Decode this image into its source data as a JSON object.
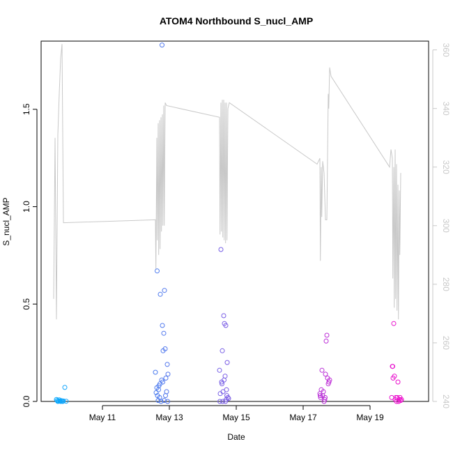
{
  "chart_data": {
    "type": "scatter",
    "title": "ATOM4 Northbound S_nucl_AMP",
    "xlabel": "Date",
    "ylabel": "S_nucl_AMP",
    "grid": false,
    "xlim": [
      "2016-05-09 04:00",
      "2016-05-20 18:00"
    ],
    "ylim": [
      0,
      1.85
    ],
    "y2lim": [
      240,
      363
    ],
    "x_ticks": [
      {
        "label": "May 11",
        "x": "2016-05-11 00:00"
      },
      {
        "label": "May 13",
        "x": "2016-05-13 00:00"
      },
      {
        "label": "May 15",
        "x": "2016-05-15 00:00"
      },
      {
        "label": "May 17",
        "x": "2016-05-17 00:00"
      },
      {
        "label": "May 19",
        "x": "2016-05-19 00:00"
      }
    ],
    "y_ticks": [
      "0.0",
      "0.5",
      "1.0",
      "1.5"
    ],
    "y2_ticks": [
      "240",
      "260",
      "280",
      "300",
      "320",
      "340",
      "360"
    ],
    "colors": {
      "axis": "#000000",
      "secondary": "#c8c8c8",
      "line": "#c8c8c8",
      "gradient_start": "#00b0ff",
      "gradient_end": "#ff00c8"
    },
    "series": [
      {
        "role": "points",
        "axis": "left",
        "marker": "open-circle",
        "points": [
          [
            "2016-05-09 15:00",
            0.01
          ],
          [
            "2016-05-09 15:30",
            0.005
          ],
          [
            "2016-05-09 16:00",
            0.0
          ],
          [
            "2016-05-09 16:30",
            0.003
          ],
          [
            "2016-05-09 17:00",
            0.008
          ],
          [
            "2016-05-09 17:30",
            0.002
          ],
          [
            "2016-05-09 18:00",
            0.0
          ],
          [
            "2016-05-09 18:30",
            0.004
          ],
          [
            "2016-05-09 19:00",
            0.001
          ],
          [
            "2016-05-09 19:30",
            0.0
          ],
          [
            "2016-05-09 20:00",
            0.002
          ],
          [
            "2016-05-09 21:00",
            0.072
          ],
          [
            "2016-05-09 22:00",
            0.001
          ],
          [
            "2016-05-12 14:00",
            0.15
          ],
          [
            "2016-05-12 14:30",
            0.045
          ],
          [
            "2016-05-12 15:00",
            0.07
          ],
          [
            "2016-05-12 15:30",
            0.03
          ],
          [
            "2016-05-12 16:00",
            0.005
          ],
          [
            "2016-05-12 16:30",
            0.08
          ],
          [
            "2016-05-12 17:00",
            0.02
          ],
          [
            "2016-05-12 17:30",
            0.55
          ],
          [
            "2016-05-12 18:00",
            0.0
          ],
          [
            "2016-05-12 18:30",
            0.11
          ],
          [
            "2016-05-12 19:00",
            0.39
          ],
          [
            "2016-05-12 19:30",
            0.26
          ],
          [
            "2016-05-12 20:00",
            0.35
          ],
          [
            "2016-05-12 20:30",
            0.57
          ],
          [
            "2016-05-12 21:00",
            0.27
          ],
          [
            "2016-05-12 21:30",
            0.12
          ],
          [
            "2016-05-12 22:00",
            0.05
          ],
          [
            "2016-05-12 22:30",
            0.19
          ],
          [
            "2016-05-12 23:00",
            0.14
          ],
          [
            "2016-05-12 15:15",
            0.67
          ],
          [
            "2016-05-12 18:45",
            1.83
          ],
          [
            "2016-05-12 20:15",
            0.005
          ],
          [
            "2016-05-12 21:15",
            0.03
          ],
          [
            "2016-05-12 17:15",
            0.09
          ],
          [
            "2016-05-12 19:15",
            0.1
          ],
          [
            "2016-05-12 22:45",
            0.0
          ],
          [
            "2016-05-12 16:15",
            0.06
          ],
          [
            "2016-05-14 12:00",
            0.16
          ],
          [
            "2016-05-14 12:30",
            0.04
          ],
          [
            "2016-05-14 13:00",
            0.78
          ],
          [
            "2016-05-14 13:30",
            0.1
          ],
          [
            "2016-05-14 14:00",
            0.26
          ],
          [
            "2016-05-14 14:30",
            0.05
          ],
          [
            "2016-05-14 15:00",
            0.44
          ],
          [
            "2016-05-14 15:30",
            0.4
          ],
          [
            "2016-05-14 16:00",
            0.13
          ],
          [
            "2016-05-14 16:30",
            0.39
          ],
          [
            "2016-05-14 17:00",
            0.06
          ],
          [
            "2016-05-14 17:30",
            0.2
          ],
          [
            "2016-05-14 18:00",
            0.02
          ],
          [
            "2016-05-14 18:30",
            0.015
          ],
          [
            "2016-05-14 14:15",
            0.0
          ],
          [
            "2016-05-14 15:15",
            0.11
          ],
          [
            "2016-05-14 16:15",
            0.0
          ],
          [
            "2016-05-14 17:15",
            0.03
          ],
          [
            "2016-05-14 13:45",
            0.09
          ],
          [
            "2016-05-14 16:45",
            0.01
          ],
          [
            "2016-05-14 12:15",
            0.0
          ],
          [
            "2016-05-17 12:00",
            0.04
          ],
          [
            "2016-05-17 12:30",
            0.02
          ],
          [
            "2016-05-17 13:00",
            0.06
          ],
          [
            "2016-05-17 13:30",
            0.16
          ],
          [
            "2016-05-17 14:00",
            0.03
          ],
          [
            "2016-05-17 14:30",
            0.05
          ],
          [
            "2016-05-17 15:00",
            0.0
          ],
          [
            "2016-05-17 15:30",
            0.01
          ],
          [
            "2016-05-17 16:00",
            0.14
          ],
          [
            "2016-05-17 16:30",
            0.31
          ],
          [
            "2016-05-17 17:00",
            0.34
          ],
          [
            "2016-05-17 17:30",
            0.12
          ],
          [
            "2016-05-17 18:00",
            0.09
          ],
          [
            "2016-05-17 18:30",
            0.1
          ],
          [
            "2016-05-17 19:00",
            0.11
          ],
          [
            "2016-05-17 12:15",
            0.03
          ],
          [
            "2016-05-17 15:45",
            0.02
          ],
          [
            "2016-05-19 16:00",
            0.18
          ],
          [
            "2016-05-19 16:30",
            0.12
          ],
          [
            "2016-05-19 17:00",
            0.4
          ],
          [
            "2016-05-19 17:30",
            0.13
          ],
          [
            "2016-05-19 18:00",
            0.01
          ],
          [
            "2016-05-19 18:30",
            0.02
          ],
          [
            "2016-05-19 19:00",
            0.0
          ],
          [
            "2016-05-19 19:30",
            0.02
          ],
          [
            "2016-05-19 20:00",
            0.1
          ],
          [
            "2016-05-19 20:30",
            0.0
          ],
          [
            "2016-05-19 21:00",
            0.01
          ],
          [
            "2016-05-19 21:30",
            0.02
          ],
          [
            "2016-05-19 22:00",
            0.005
          ],
          [
            "2016-05-19 15:30",
            0.02
          ],
          [
            "2016-05-19 16:15",
            0.18
          ],
          [
            "2016-05-19 22:30",
            0.01
          ]
        ]
      },
      {
        "role": "line",
        "axis": "right",
        "points": [
          [
            "2016-05-09 13:00",
            275
          ],
          [
            "2016-05-09 14:00",
            330
          ],
          [
            "2016-05-09 15:00",
            268
          ],
          [
            "2016-05-09 16:00",
            331
          ],
          [
            "2016-05-09 17:00",
            345
          ],
          [
            "2016-05-09 18:00",
            357
          ],
          [
            "2016-05-09 19:00",
            362
          ],
          [
            "2016-05-09 20:00",
            301
          ],
          [
            "2016-05-12 14:00",
            302
          ],
          [
            "2016-05-12 14:20",
            285
          ],
          [
            "2016-05-12 15:00",
            330
          ],
          [
            "2016-05-12 15:20",
            295
          ],
          [
            "2016-05-12 16:00",
            335
          ],
          [
            "2016-05-12 16:20",
            290
          ],
          [
            "2016-05-12 17:00",
            336
          ],
          [
            "2016-05-12 17:20",
            292
          ],
          [
            "2016-05-12 18:00",
            337
          ],
          [
            "2016-05-12 18:20",
            298
          ],
          [
            "2016-05-12 19:00",
            338
          ],
          [
            "2016-05-12 19:20",
            300
          ],
          [
            "2016-05-12 20:00",
            341
          ],
          [
            "2016-05-12 20:20",
            300
          ],
          [
            "2016-05-12 21:00",
            342
          ],
          [
            "2016-05-12 22:00",
            341
          ],
          [
            "2016-05-14 12:00",
            337
          ],
          [
            "2016-05-14 12:20",
            297
          ],
          [
            "2016-05-14 13:00",
            342
          ],
          [
            "2016-05-14 13:20",
            298
          ],
          [
            "2016-05-14 14:00",
            343
          ],
          [
            "2016-05-14 14:20",
            296
          ],
          [
            "2016-05-14 15:00",
            343
          ],
          [
            "2016-05-14 15:20",
            295
          ],
          [
            "2016-05-14 16:00",
            342
          ],
          [
            "2016-05-14 16:20",
            294
          ],
          [
            "2016-05-14 17:00",
            342
          ],
          [
            "2016-05-14 17:20",
            295
          ],
          [
            "2016-05-14 18:00",
            340
          ],
          [
            "2016-05-14 19:00",
            342
          ],
          [
            "2016-05-17 10:00",
            321
          ],
          [
            "2016-05-17 11:00",
            322
          ],
          [
            "2016-05-17 12:00",
            323
          ],
          [
            "2016-05-17 12:20",
            288
          ],
          [
            "2016-05-17 13:00",
            320
          ],
          [
            "2016-05-17 13:20",
            303
          ],
          [
            "2016-05-17 14:00",
            322
          ],
          [
            "2016-05-17 15:00",
            318
          ],
          [
            "2016-05-17 16:00",
            302
          ],
          [
            "2016-05-17 17:00",
            302
          ],
          [
            "2016-05-17 18:00",
            345
          ],
          [
            "2016-05-17 18:20",
            340
          ],
          [
            "2016-05-17 19:00",
            354
          ],
          [
            "2016-05-17 20:00",
            351
          ],
          [
            "2016-05-19 14:00",
            320
          ],
          [
            "2016-05-19 15:00",
            326
          ],
          [
            "2016-05-19 16:00",
            323
          ],
          [
            "2016-05-19 16:20",
            282
          ],
          [
            "2016-05-19 17:00",
            320
          ],
          [
            "2016-05-19 17:20",
            272
          ],
          [
            "2016-05-19 18:00",
            326
          ],
          [
            "2016-05-19 18:20",
            275
          ],
          [
            "2016-05-19 19:00",
            321
          ],
          [
            "2016-05-19 19:20",
            271
          ],
          [
            "2016-05-19 20:00",
            314
          ],
          [
            "2016-05-19 20:20",
            268
          ],
          [
            "2016-05-19 21:00",
            312
          ],
          [
            "2016-05-19 21:20",
            290
          ],
          [
            "2016-05-19 22:00",
            318
          ]
        ]
      }
    ]
  }
}
